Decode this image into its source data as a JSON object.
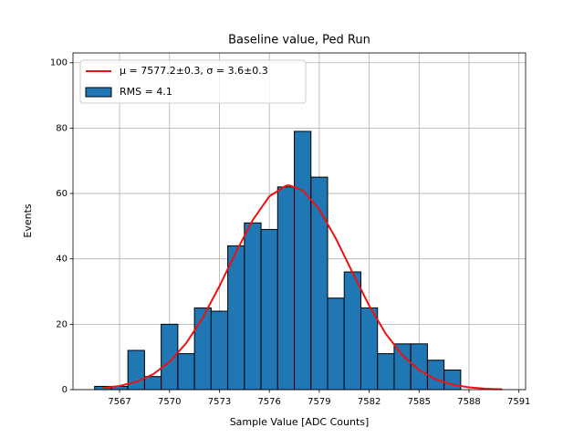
{
  "chart_data": {
    "type": "histogram",
    "title": "Baseline value, Ped Run",
    "xlabel": "Sample Value [ADC Counts]",
    "ylabel": "Events",
    "xlim": [
      7564.2,
      7591.4
    ],
    "ylim": [
      0,
      103
    ],
    "xticks": [
      7567,
      7570,
      7573,
      7576,
      7579,
      7582,
      7585,
      7588,
      7591
    ],
    "yticks": [
      0,
      20,
      40,
      60,
      80,
      100
    ],
    "grid": true,
    "legend": "upper left",
    "series": [
      {
        "name": "μ = 7577.2±0.3, σ = 3.6±0.3",
        "type": "line",
        "color": "#ee1111",
        "x": [
          7566,
          7567,
          7568,
          7569,
          7570,
          7571,
          7572,
          7573,
          7574,
          7575,
          7576,
          7577,
          7577.2,
          7578,
          7579,
          7580,
          7581,
          7582,
          7583,
          7584,
          7585,
          7586,
          7587,
          7588,
          7589,
          7590
        ],
        "values": [
          0.49,
          1.13,
          2.39,
          4.67,
          8.46,
          14.18,
          22.02,
          31.64,
          42.11,
          51.86,
          59.13,
          62.4,
          62.5,
          60.98,
          55.16,
          46.19,
          35.8,
          25.7,
          17.07,
          10.5,
          5.98,
          3.15,
          1.54,
          0.69,
          0.29,
          0.11
        ]
      },
      {
        "name": "RMS = 4.1",
        "type": "histogram",
        "color": "#1f77b4",
        "bins": [
          7565.5,
          7566.5,
          7567.5,
          7568.5,
          7569.5,
          7570.5,
          7571.5,
          7572.5,
          7573.5,
          7574.5,
          7575.5,
          7576.5,
          7577.5,
          7578.5,
          7579.5,
          7580.5,
          7581.5,
          7582.5,
          7583.5,
          7584.5,
          7585.5,
          7586.5,
          7587.5
        ],
        "values": [
          1,
          1,
          12,
          4,
          20,
          11,
          25,
          24,
          44,
          51,
          49,
          62,
          79,
          65,
          28,
          36,
          25,
          11,
          14,
          14,
          9,
          6
        ]
      }
    ]
  }
}
